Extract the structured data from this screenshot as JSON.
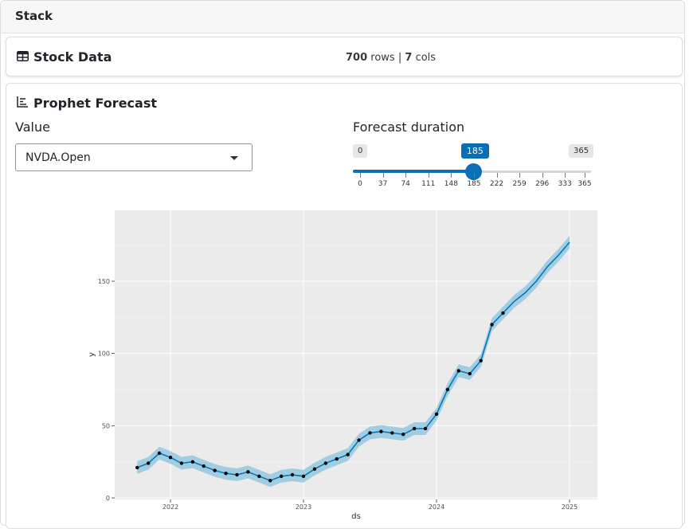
{
  "stack": {
    "title": "Stack"
  },
  "stock_data": {
    "title": "Stock Data",
    "rows": "700",
    "rows_word": "rows",
    "sep": "|",
    "cols": "7",
    "cols_word": "cols"
  },
  "forecast": {
    "title": "Prophet Forecast",
    "value_label": "Value",
    "select_value": "NVDA.Open",
    "duration_label": "Forecast duration",
    "slider": {
      "min": "0",
      "max": "365",
      "value": "185",
      "value_num": 185,
      "min_num": 0,
      "max_num": 365,
      "ticks": [
        "0",
        "37",
        "74",
        "111",
        "148",
        "185",
        "222",
        "259",
        "296",
        "333",
        "365"
      ]
    }
  },
  "chart_data": {
    "type": "line",
    "xlabel": "ds",
    "ylabel": "y",
    "x_ticks": [
      "2022",
      "2023",
      "2024",
      "2025"
    ],
    "y_ticks": [
      "0",
      "50",
      "100",
      "150"
    ],
    "ylim": [
      0,
      190
    ],
    "xlim": [
      "2021-08",
      "2025-01"
    ],
    "series": [
      {
        "values_x": [
          "2021-10",
          "2021-11",
          "2021-12",
          "2022-01",
          "2022-02",
          "2022-03",
          "2022-04",
          "2022-05",
          "2022-06",
          "2022-07",
          "2022-08",
          "2022-09",
          "2022-10",
          "2022-11",
          "2022-12",
          "2023-01",
          "2023-02",
          "2023-03",
          "2023-04",
          "2023-05",
          "2023-06",
          "2023-07",
          "2023-08",
          "2023-09",
          "2023-10",
          "2023-11",
          "2023-12",
          "2024-01",
          "2024-02",
          "2024-03",
          "2024-04",
          "2024-05",
          "2024-06",
          "2024-07",
          "2024-08",
          "2024-09",
          "2024-10",
          "2024-11",
          "2024-12",
          "2025-01"
        ],
        "values_y": [
          21,
          24,
          31,
          28,
          24,
          25,
          22,
          19,
          17,
          16,
          18,
          15,
          12,
          15,
          16,
          15,
          20,
          24,
          27,
          30,
          40,
          45,
          46,
          45,
          44,
          48,
          48,
          58,
          75,
          88,
          86,
          95,
          120,
          128,
          136,
          142,
          150,
          160,
          168,
          177
        ]
      }
    ],
    "colors": {
      "forecast": "#0072B2",
      "band": "#8fc6e0",
      "points": "#000000",
      "panel": "#ebebeb",
      "grid": "#ffffff"
    }
  }
}
